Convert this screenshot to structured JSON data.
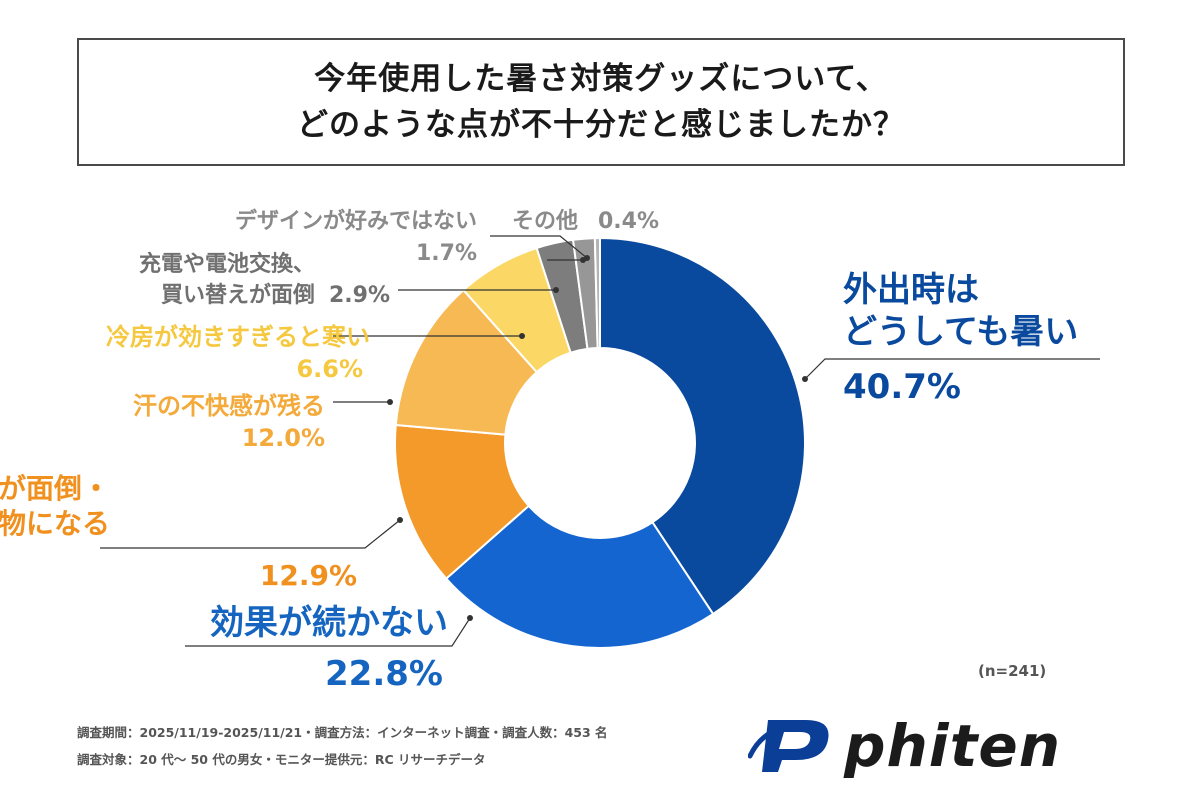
{
  "title": {
    "line1": "今年使用した暑さ対策グッズについて、",
    "line2": "どのような点が不十分だと感じましたか？"
  },
  "chart_data": {
    "type": "pie",
    "donut": true,
    "title": "今年使用した暑さ対策グッズについて、どのような点が不十分だと感じましたか？",
    "slices": [
      {
        "label_lines": [
          "外出時は",
          "どうしても暑い"
        ],
        "value": 40.7,
        "value_text": "40.7%",
        "color": "#0a4a9e",
        "label_color": "#0a4a9e"
      },
      {
        "label_lines": [
          "効果が続かない"
        ],
        "value": 22.8,
        "value_text": "22.8%",
        "color": "#1565d0",
        "label_color": "#1565c0"
      },
      {
        "label_lines": [
          "持ち運びが面倒・",
          "荷物になる"
        ],
        "value": 12.9,
        "value_text": "12.9%",
        "color": "#f39a2a",
        "label_color": "#f0901e"
      },
      {
        "label_lines": [
          "汗の不快感が残る"
        ],
        "value": 12.0,
        "value_text": "12.0%",
        "color": "#f7b953",
        "label_color": "#f3aa3a"
      },
      {
        "label_lines": [
          "冷房が効きすぎると寒い"
        ],
        "value": 6.6,
        "value_text": "6.6%",
        "color": "#fbd865",
        "label_color": "#f5c840"
      },
      {
        "label_lines": [
          "充電や電池交換、",
          "買い替えが面倒"
        ],
        "value": 2.9,
        "value_text": "2.9%",
        "color": "#7d7d7d",
        "label_color": "#707070"
      },
      {
        "label_lines": [
          "デザインが好みではない"
        ],
        "value": 1.7,
        "value_text": "1.7%",
        "color": "#979797",
        "label_color": "#8a8a8a"
      },
      {
        "label_lines": [
          "その他"
        ],
        "value": 0.4,
        "value_text": "0.4%",
        "color": "#b4b4b4",
        "label_color": "#8a8a8a"
      }
    ],
    "legend": "none"
  },
  "sample_note": "(n=241)",
  "footnotes": {
    "line1": "調査期間：2025/11/19-2025/11/21・調査方法：インターネット調査・調査人数：453 名",
    "line2": "調査対象：20 代〜 50 代の男女・モニター提供元：RC リサーチデータ"
  },
  "logo": {
    "text": "phiten",
    "color": "#1b1b1b",
    "mark_color": "#0b3f97"
  }
}
